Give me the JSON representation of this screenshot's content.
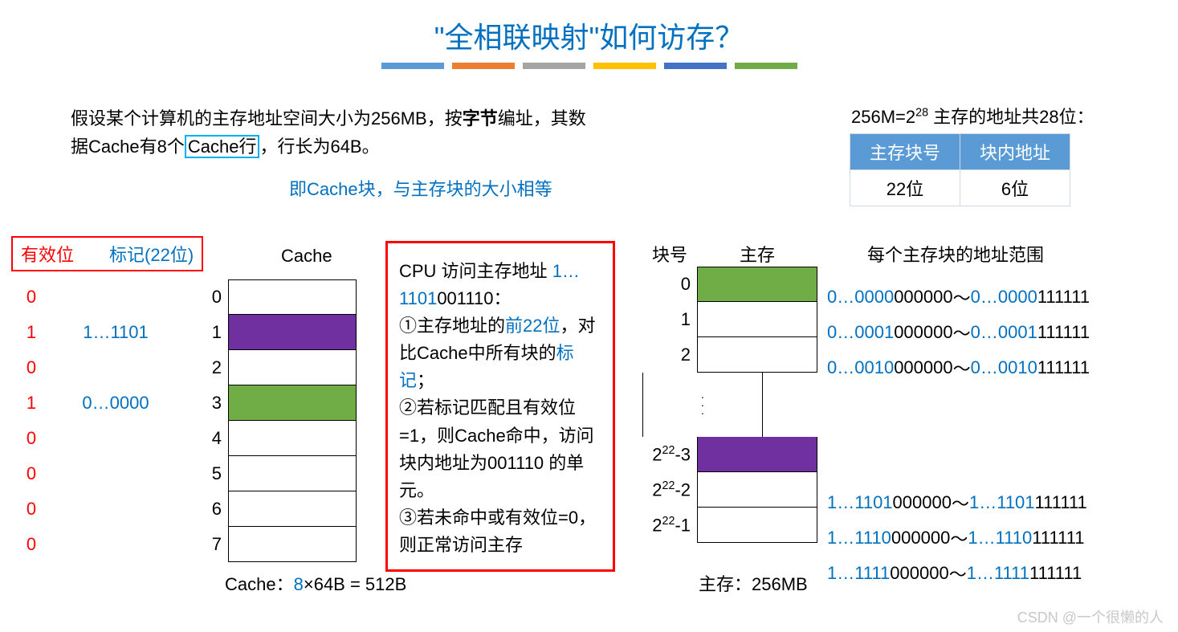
{
  "title": "\"全相联映射\"如何访存？",
  "bar_colors": [
    "#5b9bd5",
    "#ed7d31",
    "#a5a5a5",
    "#ffc000",
    "#4472c4",
    "#70ad47"
  ],
  "description": {
    "line1_pre": "假设某个计算机的主存地址空间大小为256MB，按",
    "bold": "字节",
    "line1_post": "编址，其数据Cache有8个",
    "boxed": "Cache行",
    "line1_end": "，行长为64B。",
    "sub": "即Cache块，与主存块的大小相等"
  },
  "addr_note_pre": "256M=2",
  "addr_note_sup": "28",
  "addr_note_post": " 主存的地址共28位：",
  "addr_table": {
    "h1": "主存块号",
    "h2": "块内地址",
    "v1": "22位",
    "v2": "6位"
  },
  "cache": {
    "valid_label": "有效位",
    "tag_label": "标记(22位)",
    "header": "Cache",
    "rows": [
      {
        "valid": "0",
        "tag": "",
        "idx": "0",
        "color": "#ffffff"
      },
      {
        "valid": "1",
        "tag": "1…1101",
        "idx": "1",
        "color": "#7030a0"
      },
      {
        "valid": "0",
        "tag": "",
        "idx": "2",
        "color": "#ffffff"
      },
      {
        "valid": "1",
        "tag": "0…0000",
        "idx": "3",
        "color": "#70ad47"
      },
      {
        "valid": "0",
        "tag": "",
        "idx": "4",
        "color": "#ffffff"
      },
      {
        "valid": "0",
        "tag": "",
        "idx": "5",
        "color": "#ffffff"
      },
      {
        "valid": "0",
        "tag": "",
        "idx": "6",
        "color": "#ffffff"
      },
      {
        "valid": "0",
        "tag": "",
        "idx": "7",
        "color": "#ffffff"
      }
    ],
    "foot_pre": "Cache：",
    "foot_blue": "8",
    "foot_post": "×64B = 512B"
  },
  "cpu_box": {
    "l1": "CPU 访问主存地址",
    "l2_blue": "1…1101",
    "l2_black": "001110：",
    "l3a": "①主存地址的",
    "l3b": "前22位",
    "l3c": "，对比Cache中所有块的",
    "l3d": "标记",
    "l3e": "；",
    "l4": "②若标记匹配且有效位=1，则Cache命中，访问块内地址为",
    "l4b": "001110",
    "l4c": " 的单元。",
    "l5": "③若未命中或有效位=0，则正常访问主存"
  },
  "memory": {
    "block_label": "块号",
    "mem_label": "主存",
    "rows_top": [
      {
        "label": "0",
        "color": "#70ad47"
      },
      {
        "label": "1",
        "color": "#ffffff"
      },
      {
        "label": "2",
        "color": "#ffffff"
      }
    ],
    "rows_bot": [
      {
        "label_html": "2<sup>22</sup>-3",
        "color": "#7030a0"
      },
      {
        "label_html": "2<sup>22</sup>-2",
        "color": "#ffffff"
      },
      {
        "label_html": "2<sup>22</sup>-1",
        "color": "#ffffff"
      }
    ],
    "foot": "主存：256MB"
  },
  "ranges": {
    "header": "每个主存块的地址范围",
    "top": [
      {
        "p1": "0…0000",
        "m1": "000000",
        "tilde": "～",
        "p2": "0…0000",
        "m2": "111111"
      },
      {
        "p1": "0…0001",
        "m1": "000000",
        "tilde": "～",
        "p2": "0…0001",
        "m2": "111111"
      },
      {
        "p1": "0…0010",
        "m1": "000000",
        "tilde": "～",
        "p2": "0…0010",
        "m2": "111111"
      }
    ],
    "bot": [
      {
        "p1": "1…1101",
        "m1": "000000",
        "tilde": "～",
        "p2": "1…1101",
        "m2": "111111"
      },
      {
        "p1": "1…1110",
        "m1": "000000",
        "tilde": "～",
        "p2": "1…1110",
        "m2": "111111"
      },
      {
        "p1": "1…1111",
        "m1": "000000",
        "tilde": "～",
        "p2": "1…1111",
        "m2": "111111"
      }
    ]
  },
  "watermark": "CSDN @一个很懒的人"
}
